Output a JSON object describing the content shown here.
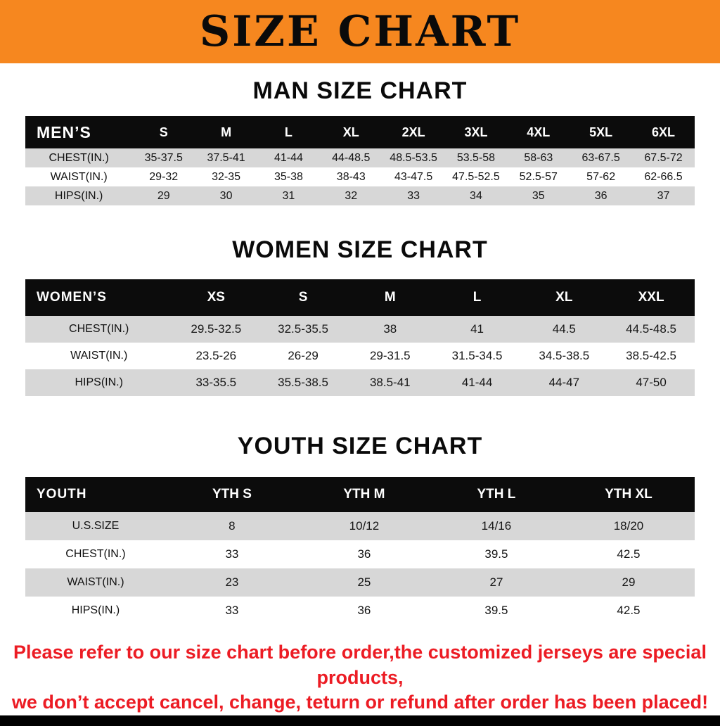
{
  "banner": {
    "title": "SIZE CHART"
  },
  "colors": {
    "banner_orange": "#f6871f",
    "table_header_black": "#0c0c0c",
    "row_gray": "#d7d7d7",
    "note_red": "#ec1c24"
  },
  "sections": [
    {
      "heading": "MAN SIZE CHART",
      "table": {
        "header": [
          "MEN’S",
          "S",
          "M",
          "L",
          "XL",
          "2XL",
          "3XL",
          "4XL",
          "5XL",
          "6XL"
        ],
        "rows": [
          [
            "CHEST(IN.)",
            "35-37.5",
            "37.5-41",
            "41-44",
            "44-48.5",
            "48.5-53.5",
            "53.5-58",
            "58-63",
            "63-67.5",
            "67.5-72"
          ],
          [
            "WAIST(IN.)",
            "29-32",
            "32-35",
            "35-38",
            "38-43",
            "43-47.5",
            "47.5-52.5",
            "52.5-57",
            "57-62",
            "62-66.5"
          ],
          [
            "HIPS(IN.)",
            "29",
            "30",
            "31",
            "32",
            "33",
            "34",
            "35",
            "36",
            "37"
          ]
        ]
      }
    },
    {
      "heading": "WOMEN SIZE CHART",
      "table": {
        "header": [
          "WOMEN’S",
          "XS",
          "S",
          "M",
          "L",
          "XL",
          "XXL"
        ],
        "rows": [
          [
            "CHEST(IN.)",
            "29.5-32.5",
            "32.5-35.5",
            "38",
            "41",
            "44.5",
            "44.5-48.5"
          ],
          [
            "WAIST(IN.)",
            "23.5-26",
            "26-29",
            "29-31.5",
            "31.5-34.5",
            "34.5-38.5",
            "38.5-42.5"
          ],
          [
            "HIPS(IN.)",
            "33-35.5",
            "35.5-38.5",
            "38.5-41",
            "41-44",
            "44-47",
            "47-50"
          ]
        ]
      }
    },
    {
      "heading": "YOUTH SIZE CHART",
      "table": {
        "header": [
          "YOUTH",
          "YTH S",
          "YTH M",
          "YTH L",
          "YTH XL"
        ],
        "rows": [
          [
            "U.S.SIZE",
            "8",
            "10/12",
            "14/16",
            "18/20"
          ],
          [
            "CHEST(IN.)",
            "33",
            "36",
            "39.5",
            "42.5"
          ],
          [
            "WAIST(IN.)",
            "23",
            "25",
            "27",
            "29"
          ],
          [
            "HIPS(IN.)",
            "33",
            "36",
            "39.5",
            "42.5"
          ]
        ]
      }
    }
  ],
  "footer": {
    "line1": "Please refer to our size chart before order,the customized jerseys are special products,",
    "line2": "we don’t accept cancel, change, teturn or refund after order has been placed!"
  }
}
